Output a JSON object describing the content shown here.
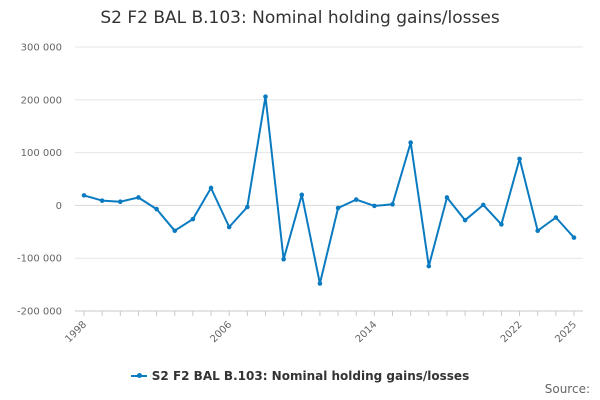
{
  "title": "S2 F2 BAL B.103: Nominal holding gains/losses",
  "source_label": "Source:",
  "colors": {
    "series": "#0b7bc1"
  },
  "chart_data": {
    "type": "line",
    "title": "S2 F2 BAL B.103: Nominal holding gains/losses",
    "x_tick_labels": [
      "1998",
      "2006",
      "2014",
      "2022",
      "2025"
    ],
    "y_tick_labels": [
      "300 000",
      "200 000",
      "100 000",
      "0",
      "-100 000",
      "-200 000"
    ],
    "xlim": [
      1998,
      2025
    ],
    "ylim": [
      -200000,
      300000
    ],
    "y_ticks": [
      300000,
      200000,
      100000,
      0,
      -100000,
      -200000
    ],
    "x_ticks": [
      1998,
      2006,
      2014,
      2022,
      2025
    ],
    "legend": "bottom",
    "series": [
      {
        "name": "S2 F2 BAL B.103: Nominal holding gains/losses",
        "x": [
          1998,
          1999,
          2000,
          2001,
          2002,
          2003,
          2004,
          2005,
          2006,
          2007,
          2008,
          2009,
          2010,
          2011,
          2012,
          2013,
          2014,
          2015,
          2016,
          2017,
          2018,
          2019,
          2020,
          2021,
          2022,
          2023,
          2024,
          2025
        ],
        "values": [
          19000,
          9000,
          7000,
          15000,
          -7000,
          -48000,
          -26000,
          33000,
          -41000,
          -3000,
          206000,
          -102000,
          20000,
          -148000,
          -5000,
          11000,
          -1000,
          2000,
          119000,
          -115000,
          15000,
          -28000,
          1000,
          -36000,
          88000,
          -48000,
          -23000,
          -61000
        ]
      }
    ]
  }
}
